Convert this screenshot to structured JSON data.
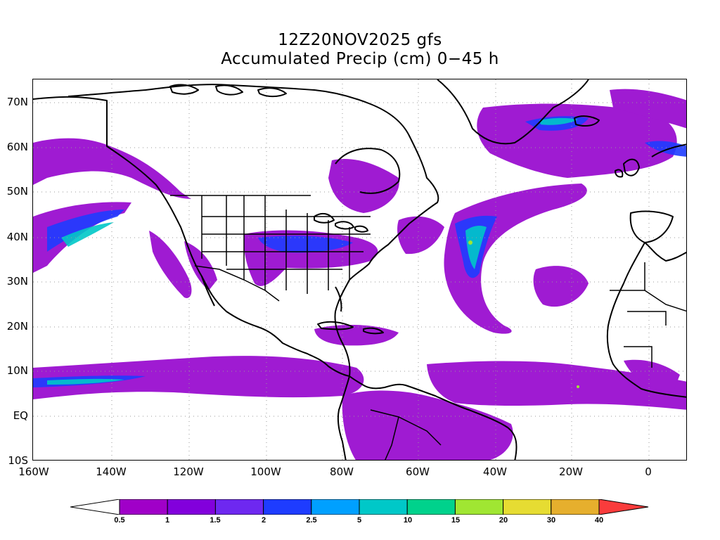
{
  "title": {
    "line1": "12Z20NOV2025 gfs",
    "line2": "Accumulated Precip (cm) 0−45 h"
  },
  "map": {
    "lat_labels": [
      "70N",
      "60N",
      "50N",
      "40N",
      "30N",
      "20N",
      "10N",
      "EQ",
      "10S"
    ],
    "lon_labels": [
      "160W",
      "140W",
      "120W",
      "100W",
      "80W",
      "60W",
      "40W",
      "20W",
      "0"
    ]
  },
  "colorbar": {
    "levels": [
      "0.5",
      "1",
      "1.5",
      "2",
      "2.5",
      "5",
      "10",
      "15",
      "20",
      "30",
      "40"
    ],
    "colors": [
      "#a000c8",
      "#8200dc",
      "#6e28f0",
      "#1e3cff",
      "#00a0ff",
      "#00c8c8",
      "#00d28c",
      "#a0e632",
      "#e6dc32",
      "#e6af2d",
      "#f08228",
      "#fa3c3c"
    ]
  }
}
